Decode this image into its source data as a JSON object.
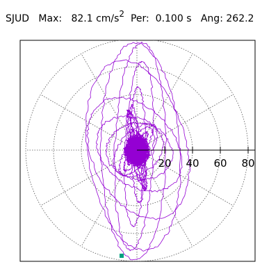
{
  "header": {
    "station": "SJUD",
    "max_label": "Max:",
    "max_value": "82.1",
    "max_unit": "cm/s",
    "max_unit_exp": "2",
    "per_label": "Per:",
    "per_value": "0.100 s",
    "ang_label": "Ang:",
    "ang_value": "262.2"
  },
  "chart_data": {
    "type": "polar particle-motion",
    "radial_ticks": [
      "20",
      "40",
      "60",
      "80"
    ],
    "radial_values": [
      20,
      40,
      60,
      80
    ],
    "angular_gridlines_deg": [
      0,
      30,
      60,
      90,
      120,
      150,
      180,
      210,
      240,
      270,
      300,
      330
    ],
    "grid": "dotted",
    "max_amplitude": 82.1,
    "max_angle_deg": 262.2,
    "trace_color": "#9400d3",
    "marker_color": "#00a080"
  }
}
